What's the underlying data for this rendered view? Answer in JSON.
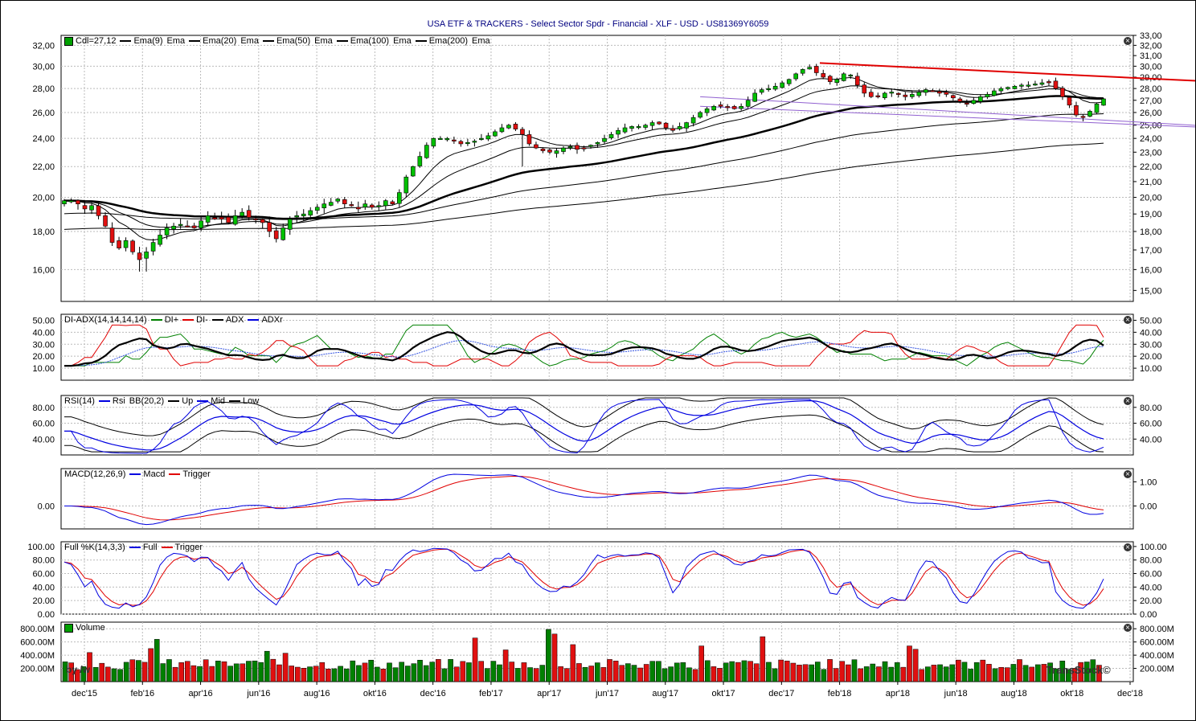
{
  "title": "USA ETF & TRACKERS - Select Sector Spdr - Financial - XLF - USD - US81369Y6059",
  "watermark_left": "by /w",
  "watermark_right": "TransStock©",
  "x_axis": {
    "ticks": [
      "dec'15",
      "feb'16",
      "apr'16",
      "jun'16",
      "aug'16",
      "okt'16",
      "dec'16",
      "feb'17",
      "apr'17",
      "jun'17",
      "aug'17",
      "okt'17",
      "dec'17",
      "feb'18",
      "apr'18",
      "jun'18",
      "aug'18",
      "okt'18",
      "dec'18"
    ]
  },
  "panels": {
    "price": {
      "legend": [
        {
          "label": "Cdl=27,12",
          "color": "#00a000",
          "kind": "box"
        },
        {
          "label": "Ema(9)",
          "color": "#000000",
          "kind": "line"
        },
        {
          "label": "Ema",
          "color": "#000000",
          "kind": "plain"
        },
        {
          "label": "Ema(20)",
          "color": "#000000",
          "kind": "line"
        },
        {
          "label": "Ema",
          "color": "#000000",
          "kind": "plain"
        },
        {
          "label": "Ema(50)",
          "color": "#000000",
          "kind": "line"
        },
        {
          "label": "Ema",
          "color": "#000000",
          "kind": "plain"
        },
        {
          "label": "Ema(100)",
          "color": "#000000",
          "kind": "line"
        },
        {
          "label": "Ema",
          "color": "#000000",
          "kind": "plain"
        },
        {
          "label": "Ema(200)",
          "color": "#000000",
          "kind": "line"
        },
        {
          "label": "Ema",
          "color": "#000000",
          "kind": "plain"
        }
      ],
      "left_ticks": [
        "16,00",
        "18,00",
        "20,00",
        "22,00",
        "24,00",
        "26,00",
        "28,00",
        "30,00",
        "32,00"
      ],
      "right_ticks": [
        "15,00",
        "16,00",
        "17,00",
        "18,00",
        "19,00",
        "20,00",
        "21,00",
        "22,00",
        "23,00",
        "24,00",
        "25,00",
        "26,00",
        "27,00",
        "28,00",
        "29,00",
        "30,00",
        "31,00",
        "32,00",
        "33,00"
      ]
    },
    "adx": {
      "legend": [
        {
          "label": "DI-ADX(14,14,14,14)",
          "color": "#008000",
          "kind": "plain"
        },
        {
          "label": "DI+",
          "color": "#008000",
          "kind": "line"
        },
        {
          "label": "DI-",
          "color": "#e00000",
          "kind": "line"
        },
        {
          "label": "ADX",
          "color": "#000000",
          "kind": "line"
        },
        {
          "label": "ADXr",
          "color": "#0000e0",
          "kind": "line"
        }
      ],
      "ticks": [
        "10.00",
        "20.00",
        "30.00",
        "40.00",
        "50.00"
      ]
    },
    "rsi": {
      "legend": [
        {
          "label": "RSI(14)",
          "color": "#0000e0",
          "kind": "plain"
        },
        {
          "label": "Rsi",
          "color": "#0000e0",
          "kind": "line"
        },
        {
          "label": "BB(20,2)",
          "color": "#000000",
          "kind": "plain"
        },
        {
          "label": "Up",
          "color": "#000000",
          "kind": "line"
        },
        {
          "label": "Mid",
          "color": "#0000e0",
          "kind": "line"
        },
        {
          "label": "Low",
          "color": "#000000",
          "kind": "line"
        }
      ],
      "ticks": [
        "40.00",
        "60.00",
        "80.00"
      ]
    },
    "macd": {
      "legend": [
        {
          "label": "MACD(12,26,9)",
          "color": "#0000e0",
          "kind": "plain"
        },
        {
          "label": "Macd",
          "color": "#0000e0",
          "kind": "line"
        },
        {
          "label": "Trigger",
          "color": "#e00000",
          "kind": "line"
        }
      ],
      "left_ticks": [
        "0.00"
      ],
      "right_ticks": [
        "0.00",
        "1.00"
      ]
    },
    "stoch": {
      "legend": [
        {
          "label": "Full %K(14,3,3)",
          "color": "#0000e0",
          "kind": "plain"
        },
        {
          "label": "Full",
          "color": "#0000e0",
          "kind": "line"
        },
        {
          "label": "Trigger",
          "color": "#e00000",
          "kind": "line"
        }
      ],
      "ticks": [
        "0.00",
        "20.00",
        "40.00",
        "60.00",
        "80.00",
        "100.00"
      ]
    },
    "volume": {
      "legend": [
        {
          "label": "Volume",
          "color": "#00a000",
          "kind": "box"
        }
      ],
      "ticks": [
        "200.00M",
        "400.00M",
        "600.00M",
        "800.00M"
      ]
    }
  },
  "chart_data": {
    "type": "line",
    "title": "USA ETF & TRACKERS - Select Sector Spdr - Financial - XLF - USD - US81369Y6059",
    "x_labels": [
      "dec'15",
      "feb'16",
      "apr'16",
      "jun'16",
      "aug'16",
      "okt'16",
      "dec'16",
      "feb'17",
      "apr'17",
      "jun'17",
      "aug'17",
      "okt'17",
      "dec'17",
      "feb'18",
      "apr'18",
      "jun'18",
      "aug'18",
      "okt'18",
      "dec'18"
    ],
    "grid": true,
    "price": {
      "ylim": [
        14.5,
        33
      ],
      "log_scale": true,
      "close": [
        19.8,
        19.8,
        19.6,
        19.3,
        19.5,
        18.9,
        18.3,
        17.4,
        17.1,
        17.5,
        16.9,
        16.5,
        16.9,
        17.4,
        17.8,
        18.2,
        18.3,
        18.4,
        18.3,
        18.2,
        18.6,
        18.9,
        18.7,
        18.7,
        18.5,
        18.9,
        19.1,
        18.8,
        18.7,
        18.5,
        18.0,
        17.6,
        18.2,
        18.7,
        18.9,
        19.0,
        19.2,
        19.4,
        19.6,
        19.7,
        19.9,
        19.6,
        19.5,
        19.3,
        19.6,
        19.4,
        19.5,
        19.8,
        19.6,
        20.3,
        21.3,
        22.0,
        22.7,
        23.5,
        24.0,
        24.0,
        24.0,
        23.8,
        23.6,
        23.7,
        23.8,
        24.0,
        24.2,
        24.5,
        24.8,
        25.0,
        24.7,
        24.3,
        23.6,
        23.3,
        23.1,
        23.0,
        23.1,
        23.3,
        23.4,
        23.2,
        23.3,
        23.5,
        23.7,
        24.0,
        24.3,
        24.6,
        24.8,
        24.9,
        24.9,
        25.0,
        25.2,
        25.1,
        24.8,
        24.6,
        24.9,
        25.2,
        25.6,
        26.0,
        26.3,
        26.5,
        26.5,
        26.4,
        26.3,
        26.5,
        27.0,
        27.6,
        27.9,
        28.0,
        28.2,
        28.5,
        28.8,
        29.3,
        29.7,
        29.9,
        29.4,
        29.0,
        28.6,
        28.8,
        29.3,
        29.2,
        28.3,
        27.6,
        27.3,
        27.3,
        27.6,
        27.7,
        27.5,
        27.3,
        27.5,
        27.7,
        27.9,
        27.8,
        27.6,
        27.5,
        27.2,
        26.9,
        26.7,
        27.0,
        27.3,
        27.5,
        27.8,
        28.0,
        28.1,
        28.2,
        28.3,
        28.3,
        28.4,
        28.5,
        28.6,
        28.0,
        27.3,
        26.6,
        25.8,
        25.6,
        26.1,
        26.7,
        27.12
      ]
    },
    "ema": {
      "periods": [
        9,
        20,
        50,
        100,
        200
      ]
    },
    "trendlines": [
      {
        "color": "#e00000",
        "from": [
          110.5,
          30.3
        ],
        "to": [
          164,
          28.6
        ]
      },
      {
        "color": "#9060d0",
        "from": [
          93,
          27.3
        ],
        "to": [
          164,
          24.9
        ]
      },
      {
        "color": "#9060d0",
        "from": [
          93,
          26.5
        ],
        "to": [
          164,
          24.8
        ]
      }
    ],
    "adx": {
      "ylim": [
        0,
        55
      ]
    },
    "rsi": {
      "ylim": [
        20,
        95
      ]
    },
    "macd": {
      "ylim": [
        -0.95,
        1.55
      ]
    },
    "stoch": {
      "ylim": [
        0,
        107
      ]
    },
    "volume": {
      "ylim": [
        100,
        900
      ],
      "unit": "M"
    }
  }
}
